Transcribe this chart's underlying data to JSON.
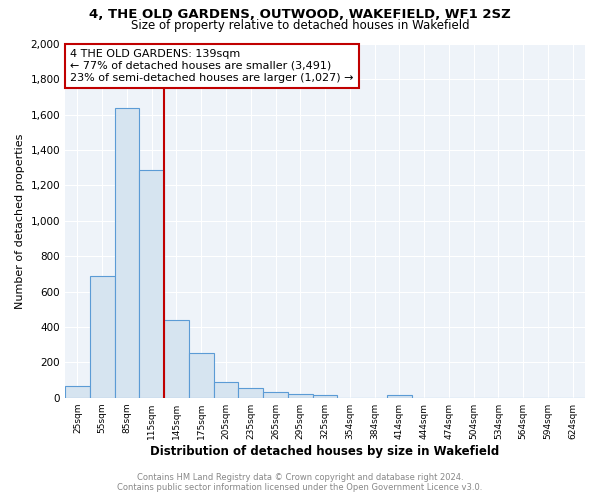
{
  "title": "4, THE OLD GARDENS, OUTWOOD, WAKEFIELD, WF1 2SZ",
  "subtitle": "Size of property relative to detached houses in Wakefield",
  "xlabel": "Distribution of detached houses by size in Wakefield",
  "ylabel": "Number of detached properties",
  "annotation_line1": "4 THE OLD GARDENS: 139sqm",
  "annotation_line2": "← 77% of detached houses are smaller (3,491)",
  "annotation_line3": "23% of semi-detached houses are larger (1,027) →",
  "property_size_sqm": 139,
  "bar_color": "#d6e4f0",
  "bar_edge_color": "#5b9bd5",
  "highlight_color": "#c00000",
  "annotation_box_color": "#c00000",
  "plot_bg_color": "#eef3f9",
  "categories": [
    "25sqm",
    "55sqm",
    "85sqm",
    "115sqm",
    "145sqm",
    "175sqm",
    "205sqm",
    "235sqm",
    "265sqm",
    "295sqm",
    "325sqm",
    "354sqm",
    "384sqm",
    "414sqm",
    "444sqm",
    "474sqm",
    "504sqm",
    "534sqm",
    "564sqm",
    "594sqm",
    "624sqm"
  ],
  "values": [
    68,
    690,
    1640,
    1290,
    440,
    255,
    90,
    55,
    33,
    20,
    13,
    0,
    0,
    18,
    0,
    0,
    0,
    0,
    0,
    0,
    0
  ],
  "ylim": [
    0,
    2000
  ],
  "yticks": [
    0,
    200,
    400,
    600,
    800,
    1000,
    1200,
    1400,
    1600,
    1800,
    2000
  ],
  "footer_line1": "Contains HM Land Registry data © Crown copyright and database right 2024.",
  "footer_line2": "Contains public sector information licensed under the Open Government Licence v3.0.",
  "fig_width": 6.0,
  "fig_height": 5.0
}
